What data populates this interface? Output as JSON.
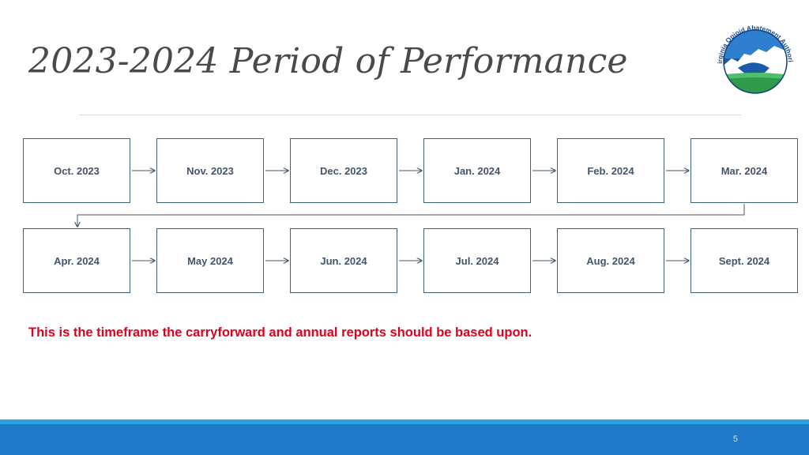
{
  "slide": {
    "title": "2023-2024 Period of Performance",
    "note": "This is the timeframe the carryforward and annual reports should be based upon.",
    "page_number": "5"
  },
  "logo": {
    "text": "Virginia Opioid Abatement Authority"
  },
  "timeline": {
    "row1": [
      "Oct. 2023",
      "Nov. 2023",
      "Dec. 2023",
      "Jan. 2024",
      "Feb. 2024",
      "Mar. 2024"
    ],
    "row2": [
      "Apr. 2024",
      "May 2024",
      "Jun. 2024",
      "Jul. 2024",
      "Aug. 2024",
      "Sept. 2024"
    ]
  },
  "colors": {
    "title": "#4a4a4a",
    "box_border": "#3f6079",
    "box_text": "#44546a",
    "note": "#e0001b",
    "footer": "#1f79c8",
    "footer_accent": "#2aa3e0"
  }
}
